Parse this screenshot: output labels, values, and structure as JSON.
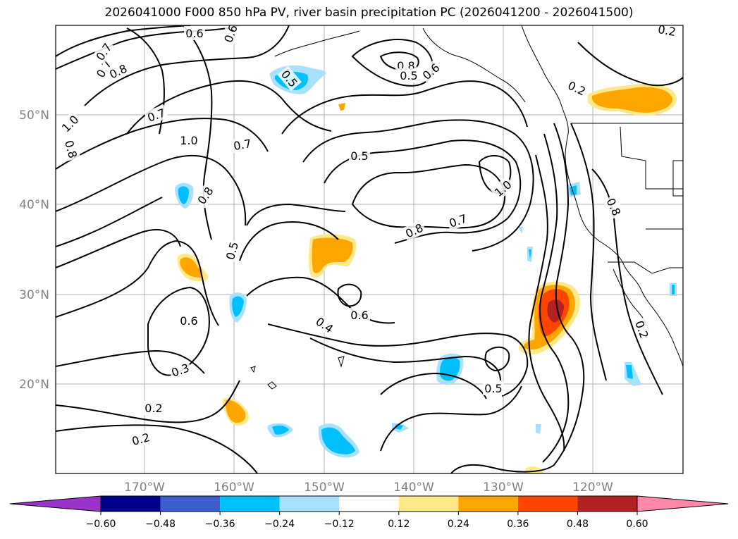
{
  "title": "2026041000 F000 850 hPa PV, river basin precipitation PC (2026041200 - 2026041500)",
  "chart_data": {
    "type": "heatmap",
    "variable_contours": "850 hPa PV",
    "variable_filled": "river basin precipitation PC",
    "lon_labels": [
      "170°W",
      "160°W",
      "150°W",
      "140°W",
      "130°W",
      "120°W"
    ],
    "lat_labels": [
      "50°N",
      "40°N",
      "30°N",
      "20°N"
    ],
    "contour_labels": [
      "0.6",
      "0.7",
      "0.8",
      "1.0",
      "0.8",
      "0.7",
      "1.0",
      "0.7",
      "0.8",
      "0.5",
      "0.5",
      "0.8",
      "0.7",
      "0.6",
      "0.8",
      "0.2",
      "0.5",
      "1.0",
      "0.8",
      "0.7",
      "0.2",
      "0.5",
      "0.6",
      "0.3",
      "0.4",
      "0.6",
      "0.2",
      "0.2",
      "0.5",
      "0.6",
      "0.2"
    ],
    "colorbar": {
      "levels": [
        "−0.60",
        "−0.48",
        "−0.36",
        "−0.24",
        "−0.12",
        "0.12",
        "0.24",
        "0.36",
        "0.48",
        "0.60"
      ],
      "colors": [
        "#9933cc",
        "#00008b",
        "#3a5fcd",
        "#00bfff",
        "#a8e0ff",
        "#ffffff",
        "#ffe98a",
        "#ffa500",
        "#ff4500",
        "#b22222",
        "#ff88aa"
      ]
    }
  }
}
